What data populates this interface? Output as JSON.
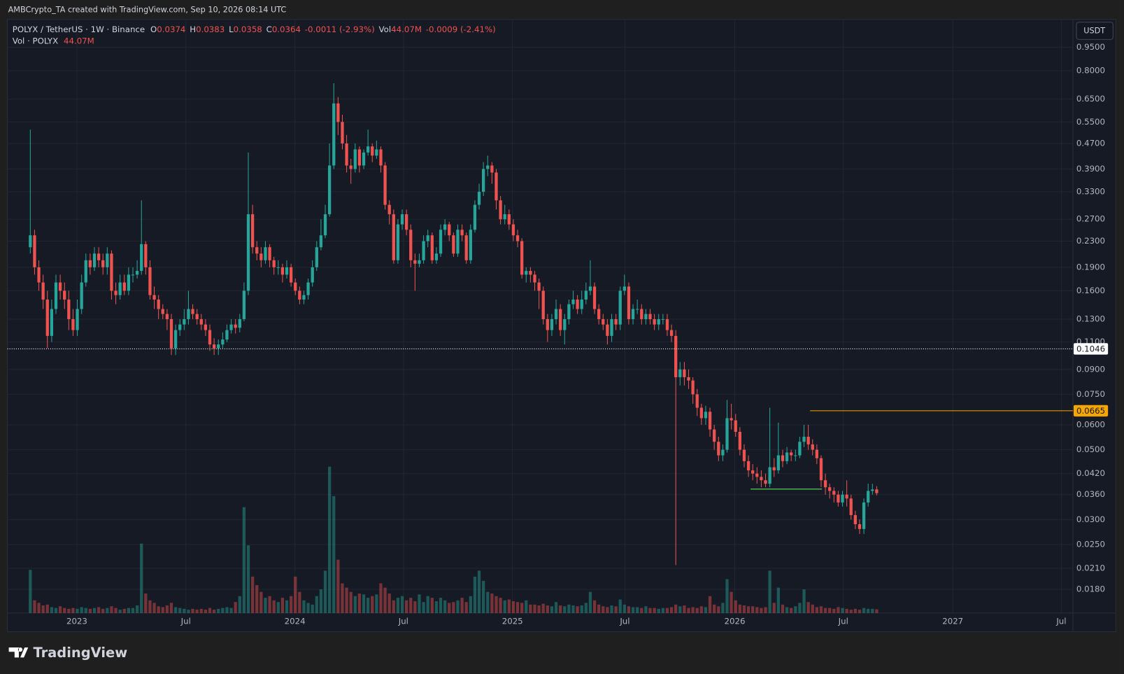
{
  "header": {
    "title": "AMBCrypto_TA created with TradingView.com, Sep 10, 2026 08:14 UTC"
  },
  "footer": {
    "brand": "TradingView"
  },
  "currency": "USDT",
  "legend": {
    "symbol": "POLYX / TetherUS · 1W · Binance",
    "o": "O",
    "h": "H",
    "l": "L",
    "c": "C",
    "change": "-0.0011 (-2.93%)",
    "vol": "Vol",
    "vol_value": "44.07M",
    "vol_change": "-0.0009 (-2.41%)",
    "vol_title": "Vol · POLYX"
  },
  "chart_data": {
    "type": "candlestick",
    "log_y": true,
    "grid": true,
    "up_color": "#26a69a",
    "down_color": "#ef5350",
    "volume_opacity": 0.45,
    "xlim": [
      -5.36,
      243.9
    ],
    "xticks": [
      {
        "value": 10.9,
        "label": "2023"
      },
      {
        "value": 36.4,
        "label": "Jul"
      },
      {
        "value": 61.9,
        "label": "2024"
      },
      {
        "value": 87.3,
        "label": "Jul"
      },
      {
        "value": 112.8,
        "label": "2025"
      },
      {
        "value": 139.1,
        "label": "Jul"
      },
      {
        "value": 164.8,
        "label": "2026"
      },
      {
        "value": 190.2,
        "label": "Jul"
      },
      {
        "value": 215.8,
        "label": "2027"
      },
      {
        "value": 241.2,
        "label": "Jul"
      }
    ],
    "ylim": [
      0.01514,
      1.159
    ],
    "yticks": [
      {
        "value": 0.95,
        "label": "0.9500"
      },
      {
        "value": 0.8,
        "label": "0.8000"
      },
      {
        "value": 0.65,
        "label": "0.6500"
      },
      {
        "value": 0.55,
        "label": "0.5500"
      },
      {
        "value": 0.47,
        "label": "0.4700"
      },
      {
        "value": 0.39,
        "label": "0.3900"
      },
      {
        "value": 0.33,
        "label": "0.3300"
      },
      {
        "value": 0.27,
        "label": "0.2700"
      },
      {
        "value": 0.23,
        "label": "0.2300"
      },
      {
        "value": 0.19,
        "label": "0.1900"
      },
      {
        "value": 0.16,
        "label": "0.1600"
      },
      {
        "value": 0.13,
        "label": "0.1300"
      },
      {
        "value": 0.11,
        "label": "0.1100"
      },
      {
        "value": 0.09,
        "label": "0.0900"
      },
      {
        "value": 0.075,
        "label": "0.0750"
      },
      {
        "value": 0.06,
        "label": "0.0600"
      },
      {
        "value": 0.05,
        "label": "0.0500"
      },
      {
        "value": 0.042,
        "label": "0.0420"
      },
      {
        "value": 0.036,
        "label": "0.0360"
      },
      {
        "value": 0.03,
        "label": "0.0300"
      },
      {
        "value": 0.025,
        "label": "0.0250"
      },
      {
        "value": 0.021,
        "label": "0.0210"
      },
      {
        "value": 0.018,
        "label": "0.0180"
      }
    ],
    "vol_ylim": [
      0,
      7000
    ],
    "price_lines": [
      {
        "value": 0.1046,
        "color": "#ffffff",
        "style": "dotted"
      },
      {
        "value": 0.0665,
        "color": "#f7a600",
        "style": "solid",
        "from": 182.4
      }
    ],
    "segments": [
      {
        "value": 0.0375,
        "from": 168.5,
        "to": 185.2,
        "color": "#4caf50"
      }
    ],
    "x": [
      0,
      1,
      2,
      3,
      4,
      5,
      6,
      7,
      8,
      9,
      10,
      11,
      12,
      13,
      14,
      15,
      16,
      17,
      18,
      19,
      20,
      21,
      22,
      23,
      24,
      25,
      26,
      27,
      28,
      29,
      30,
      31,
      32,
      33,
      34,
      35,
      36,
      37,
      38,
      39,
      40,
      41,
      42,
      43,
      44,
      45,
      46,
      47,
      48,
      49,
      50,
      51,
      52,
      53,
      54,
      55,
      56,
      57,
      58,
      59,
      60,
      61,
      62,
      63,
      64,
      65,
      66,
      67,
      68,
      69,
      70,
      71,
      72,
      73,
      74,
      75,
      76,
      77,
      78,
      79,
      80,
      81,
      82,
      83,
      84,
      85,
      86,
      87,
      88,
      89,
      90,
      91,
      92,
      93,
      94,
      95,
      96,
      97,
      98,
      99,
      100,
      101,
      102,
      103,
      104,
      105,
      106,
      107,
      108,
      109,
      110,
      111,
      112,
      113,
      114,
      115,
      116,
      117,
      118,
      119,
      120,
      121,
      122,
      123,
      124,
      125,
      126,
      127,
      128,
      129,
      130,
      131,
      132,
      133,
      134,
      135,
      136,
      137,
      138,
      139,
      140,
      141,
      142,
      143,
      144,
      145,
      146,
      147,
      148,
      149,
      150,
      151,
      152,
      153,
      154,
      155,
      156,
      157,
      158,
      159,
      160,
      161,
      162,
      163,
      164,
      165,
      166,
      167,
      168,
      169,
      170,
      171,
      172,
      173,
      174,
      175,
      176,
      177,
      178,
      179,
      180,
      181,
      182,
      183,
      184,
      185,
      186,
      187,
      188,
      189,
      190,
      191,
      192,
      193,
      194,
      195,
      196,
      197,
      198
    ],
    "open": [
      0.22,
      0.24,
      0.19,
      0.17,
      0.15,
      0.115,
      0.14,
      0.17,
      0.16,
      0.15,
      0.13,
      0.12,
      0.14,
      0.17,
      0.2,
      0.19,
      0.21,
      0.2,
      0.19,
      0.21,
      0.16,
      0.155,
      0.17,
      0.16,
      0.18,
      0.18,
      0.185,
      0.225,
      0.19,
      0.155,
      0.15,
      0.14,
      0.135,
      0.13,
      0.105,
      0.12,
      0.125,
      0.13,
      0.14,
      0.135,
      0.13,
      0.125,
      0.12,
      0.108,
      0.105,
      0.108,
      0.112,
      0.12,
      0.125,
      0.122,
      0.13,
      0.16,
      0.28,
      0.22,
      0.21,
      0.2,
      0.22,
      0.2,
      0.19,
      0.19,
      0.18,
      0.19,
      0.17,
      0.16,
      0.15,
      0.155,
      0.17,
      0.19,
      0.22,
      0.24,
      0.28,
      0.4,
      0.63,
      0.55,
      0.47,
      0.4,
      0.39,
      0.45,
      0.4,
      0.44,
      0.46,
      0.43,
      0.45,
      0.4,
      0.3,
      0.28,
      0.2,
      0.26,
      0.28,
      0.25,
      0.2,
      0.195,
      0.2,
      0.23,
      0.24,
      0.2,
      0.21,
      0.25,
      0.26,
      0.24,
      0.21,
      0.25,
      0.24,
      0.2,
      0.25,
      0.3,
      0.33,
      0.39,
      0.4,
      0.38,
      0.31,
      0.27,
      0.28,
      0.26,
      0.24,
      0.23,
      0.18,
      0.185,
      0.18,
      0.17,
      0.16,
      0.13,
      0.12,
      0.13,
      0.14,
      0.12,
      0.13,
      0.145,
      0.15,
      0.14,
      0.15,
      0.16,
      0.165,
      0.14,
      0.13,
      0.125,
      0.115,
      0.13,
      0.125,
      0.16,
      0.165,
      0.13,
      0.14,
      0.14,
      0.13,
      0.135,
      0.13,
      0.125,
      0.13,
      0.13,
      0.12,
      0.115,
      0.085,
      0.09,
      0.085,
      0.083,
      0.075,
      0.068,
      0.063,
      0.066,
      0.058,
      0.053,
      0.048,
      0.05,
      0.063,
      0.062,
      0.057,
      0.05,
      0.046,
      0.043,
      0.042,
      0.041,
      0.04,
      0.039,
      0.044,
      0.043,
      0.048,
      0.046,
      0.049,
      0.048,
      0.048,
      0.053,
      0.055,
      0.052,
      0.05,
      0.047,
      0.04,
      0.038,
      0.037,
      0.036,
      0.034,
      0.036,
      0.035,
      0.031,
      0.029,
      0.028,
      0.034,
      0.037,
      0.0374
    ],
    "high": [
      0.52,
      0.25,
      0.2,
      0.18,
      0.16,
      0.15,
      0.18,
      0.18,
      0.17,
      0.16,
      0.14,
      0.15,
      0.18,
      0.21,
      0.21,
      0.22,
      0.22,
      0.21,
      0.22,
      0.215,
      0.17,
      0.18,
      0.18,
      0.19,
      0.19,
      0.2,
      0.31,
      0.23,
      0.2,
      0.165,
      0.155,
      0.145,
      0.14,
      0.135,
      0.125,
      0.13,
      0.14,
      0.16,
      0.145,
      0.14,
      0.135,
      0.13,
      0.125,
      0.113,
      0.112,
      0.118,
      0.125,
      0.13,
      0.13,
      0.135,
      0.17,
      0.44,
      0.3,
      0.23,
      0.22,
      0.23,
      0.225,
      0.205,
      0.2,
      0.195,
      0.2,
      0.195,
      0.175,
      0.165,
      0.16,
      0.175,
      0.2,
      0.23,
      0.27,
      0.3,
      0.47,
      0.73,
      0.66,
      0.58,
      0.5,
      0.42,
      0.47,
      0.46,
      0.45,
      0.52,
      0.47,
      0.48,
      0.46,
      0.41,
      0.31,
      0.29,
      0.27,
      0.29,
      0.29,
      0.26,
      0.21,
      0.21,
      0.24,
      0.25,
      0.245,
      0.22,
      0.26,
      0.27,
      0.265,
      0.245,
      0.26,
      0.26,
      0.245,
      0.26,
      0.31,
      0.35,
      0.41,
      0.43,
      0.41,
      0.39,
      0.32,
      0.3,
      0.29,
      0.27,
      0.25,
      0.235,
      0.19,
      0.19,
      0.185,
      0.175,
      0.165,
      0.135,
      0.135,
      0.15,
      0.145,
      0.135,
      0.15,
      0.16,
      0.155,
      0.16,
      0.17,
      0.2,
      0.17,
      0.145,
      0.135,
      0.13,
      0.135,
      0.135,
      0.165,
      0.18,
      0.17,
      0.145,
      0.15,
      0.145,
      0.14,
      0.14,
      0.135,
      0.135,
      0.135,
      0.135,
      0.125,
      0.12,
      0.095,
      0.095,
      0.09,
      0.085,
      0.078,
      0.07,
      0.069,
      0.068,
      0.06,
      0.055,
      0.052,
      0.072,
      0.07,
      0.065,
      0.059,
      0.052,
      0.048,
      0.045,
      0.044,
      0.043,
      0.042,
      0.068,
      0.047,
      0.061,
      0.05,
      0.051,
      0.05,
      0.05,
      0.055,
      0.06,
      0.06,
      0.054,
      0.052,
      0.048,
      0.042,
      0.039,
      0.038,
      0.037,
      0.037,
      0.04,
      0.036,
      0.032,
      0.03,
      0.035,
      0.039,
      0.039,
      0.0383
    ],
    "low": [
      0.21,
      0.18,
      0.16,
      0.14,
      0.105,
      0.11,
      0.135,
      0.15,
      0.14,
      0.12,
      0.115,
      0.115,
      0.135,
      0.165,
      0.18,
      0.185,
      0.19,
      0.18,
      0.18,
      0.15,
      0.145,
      0.15,
      0.155,
      0.155,
      0.17,
      0.175,
      0.18,
      0.18,
      0.15,
      0.14,
      0.13,
      0.13,
      0.12,
      0.1,
      0.1,
      0.115,
      0.12,
      0.125,
      0.13,
      0.125,
      0.12,
      0.115,
      0.103,
      0.1,
      0.1,
      0.105,
      0.11,
      0.117,
      0.117,
      0.118,
      0.128,
      0.155,
      0.21,
      0.2,
      0.19,
      0.195,
      0.19,
      0.18,
      0.18,
      0.17,
      0.175,
      0.165,
      0.155,
      0.145,
      0.145,
      0.15,
      0.165,
      0.185,
      0.215,
      0.235,
      0.275,
      0.39,
      0.5,
      0.45,
      0.38,
      0.35,
      0.38,
      0.38,
      0.39,
      0.43,
      0.41,
      0.42,
      0.38,
      0.29,
      0.26,
      0.195,
      0.195,
      0.25,
      0.24,
      0.19,
      0.16,
      0.19,
      0.195,
      0.22,
      0.195,
      0.195,
      0.205,
      0.24,
      0.23,
      0.205,
      0.205,
      0.23,
      0.195,
      0.195,
      0.245,
      0.29,
      0.32,
      0.37,
      0.35,
      0.29,
      0.26,
      0.26,
      0.25,
      0.23,
      0.22,
      0.175,
      0.17,
      0.17,
      0.16,
      0.14,
      0.125,
      0.11,
      0.115,
      0.125,
      0.115,
      0.108,
      0.125,
      0.14,
      0.135,
      0.135,
      0.145,
      0.155,
      0.135,
      0.125,
      0.12,
      0.108,
      0.11,
      0.12,
      0.12,
      0.155,
      0.125,
      0.125,
      0.135,
      0.125,
      0.125,
      0.125,
      0.12,
      0.12,
      0.125,
      0.115,
      0.11,
      0.0215,
      0.08,
      0.08,
      0.078,
      0.07,
      0.064,
      0.06,
      0.06,
      0.055,
      0.05,
      0.046,
      0.046,
      0.049,
      0.058,
      0.055,
      0.048,
      0.044,
      0.041,
      0.04,
      0.039,
      0.038,
      0.038,
      0.038,
      0.041,
      0.042,
      0.044,
      0.045,
      0.046,
      0.046,
      0.047,
      0.051,
      0.05,
      0.048,
      0.045,
      0.038,
      0.036,
      0.035,
      0.034,
      0.033,
      0.033,
      0.033,
      0.03,
      0.028,
      0.027,
      0.027,
      0.033,
      0.036,
      0.0358
    ],
    "close": [
      0.24,
      0.19,
      0.17,
      0.15,
      0.115,
      0.14,
      0.17,
      0.16,
      0.15,
      0.13,
      0.12,
      0.14,
      0.17,
      0.2,
      0.19,
      0.21,
      0.2,
      0.19,
      0.21,
      0.16,
      0.155,
      0.17,
      0.16,
      0.18,
      0.18,
      0.185,
      0.225,
      0.19,
      0.155,
      0.15,
      0.14,
      0.135,
      0.13,
      0.105,
      0.12,
      0.125,
      0.13,
      0.14,
      0.135,
      0.13,
      0.125,
      0.12,
      0.108,
      0.105,
      0.108,
      0.112,
      0.12,
      0.125,
      0.122,
      0.13,
      0.16,
      0.28,
      0.22,
      0.21,
      0.2,
      0.22,
      0.2,
      0.19,
      0.19,
      0.18,
      0.19,
      0.17,
      0.16,
      0.15,
      0.155,
      0.17,
      0.19,
      0.22,
      0.24,
      0.28,
      0.4,
      0.63,
      0.55,
      0.47,
      0.4,
      0.39,
      0.45,
      0.4,
      0.44,
      0.46,
      0.43,
      0.45,
      0.4,
      0.3,
      0.28,
      0.2,
      0.26,
      0.28,
      0.25,
      0.2,
      0.195,
      0.2,
      0.23,
      0.24,
      0.2,
      0.21,
      0.25,
      0.26,
      0.24,
      0.21,
      0.25,
      0.24,
      0.2,
      0.25,
      0.3,
      0.33,
      0.39,
      0.4,
      0.38,
      0.31,
      0.27,
      0.28,
      0.26,
      0.24,
      0.23,
      0.18,
      0.185,
      0.18,
      0.17,
      0.16,
      0.13,
      0.12,
      0.13,
      0.14,
      0.12,
      0.13,
      0.145,
      0.15,
      0.14,
      0.15,
      0.16,
      0.165,
      0.14,
      0.13,
      0.125,
      0.115,
      0.13,
      0.125,
      0.16,
      0.165,
      0.13,
      0.14,
      0.14,
      0.13,
      0.135,
      0.13,
      0.125,
      0.13,
      0.13,
      0.12,
      0.115,
      0.085,
      0.09,
      0.085,
      0.083,
      0.075,
      0.068,
      0.063,
      0.066,
      0.058,
      0.053,
      0.048,
      0.05,
      0.063,
      0.062,
      0.057,
      0.05,
      0.046,
      0.043,
      0.042,
      0.041,
      0.04,
      0.039,
      0.044,
      0.043,
      0.048,
      0.046,
      0.049,
      0.048,
      0.048,
      0.053,
      0.055,
      0.052,
      0.05,
      0.047,
      0.04,
      0.038,
      0.037,
      0.036,
      0.034,
      0.036,
      0.035,
      0.031,
      0.029,
      0.028,
      0.034,
      0.037,
      0.0374,
      0.0364
    ],
    "volume": [
      510,
      150,
      120,
      90,
      100,
      70,
      60,
      80,
      60,
      50,
      60,
      50,
      70,
      60,
      50,
      60,
      70,
      50,
      60,
      80,
      60,
      40,
      50,
      60,
      60,
      90,
      820,
      230,
      150,
      120,
      80,
      70,
      90,
      120,
      70,
      60,
      50,
      40,
      50,
      40,
      50,
      40,
      60,
      40,
      50,
      60,
      70,
      60,
      130,
      200,
      1250,
      800,
      430,
      330,
      250,
      180,
      200,
      150,
      130,
      180,
      150,
      200,
      430,
      250,
      150,
      120,
      100,
      200,
      280,
      500,
      1728,
      1380,
      630,
      350,
      300,
      250,
      200,
      230,
      220,
      180,
      200,
      220,
      350,
      300,
      230,
      150,
      180,
      200,
      150,
      180,
      140,
      220,
      130,
      200,
      180,
      140,
      180,
      150,
      120,
      130,
      150,
      180,
      130,
      200,
      430,
      500,
      380,
      250,
      230,
      200,
      180,
      150,
      160,
      140,
      130,
      120,
      150,
      100,
      100,
      90,
      110,
      90,
      80,
      130,
      90,
      80,
      100,
      90,
      80,
      90,
      120,
      250,
      150,
      100,
      80,
      70,
      90,
      80,
      160,
      100,
      80,
      70,
      70,
      60,
      80,
      60,
      60,
      50,
      60,
      60,
      70,
      100,
      80,
      90,
      60,
      70,
      60,
      80,
      70,
      200,
      100,
      80,
      120,
      400,
      250,
      150,
      100,
      90,
      80,
      80,
      70,
      60,
      70,
      500,
      120,
      300,
      100,
      70,
      60,
      80,
      120,
      280,
      130,
      100,
      70,
      80,
      60,
      60,
      50,
      70,
      60,
      50,
      40,
      50,
      40,
      60,
      50,
      50,
      44.07
    ]
  }
}
